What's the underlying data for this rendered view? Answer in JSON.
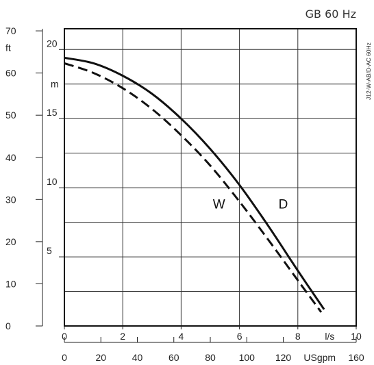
{
  "chart_data": {
    "type": "line",
    "header": "GB 60 Hz",
    "side_label": "J12-W-AB/D-AC 60Hz",
    "x_primary": {
      "unit": "l/s",
      "range": [
        0,
        10
      ],
      "ticks": [
        "0",
        "2",
        "4",
        "6",
        "8",
        "10"
      ],
      "unit_at": 9
    },
    "x_secondary": {
      "unit": "USgpm",
      "range": [
        0,
        160
      ],
      "ticks": [
        "0",
        "20",
        "40",
        "60",
        "80",
        "100",
        "120",
        "160"
      ],
      "unit_at": 140
    },
    "y_primary": {
      "unit": "m",
      "range": [
        0,
        21.5
      ],
      "ticks": [
        "5",
        "10",
        "15",
        "20"
      ],
      "unit_at": 17.5
    },
    "y_secondary": {
      "unit": "ft",
      "range": [
        0,
        70.5
      ],
      "ticks": [
        "0",
        "10",
        "20",
        "30",
        "40",
        "50",
        "60",
        "70"
      ],
      "unit_at": 66
    },
    "grid": true,
    "series": [
      {
        "name": "D",
        "style": "solid",
        "x": [
          0,
          1,
          2,
          3,
          4,
          5,
          6,
          7,
          8,
          8.9
        ],
        "y": [
          19.4,
          19.0,
          18.1,
          16.8,
          15.0,
          12.8,
          10.2,
          7.2,
          4.0,
          1.2
        ]
      },
      {
        "name": "W",
        "style": "dashed",
        "x": [
          0,
          1,
          2,
          3,
          4,
          5,
          6,
          7,
          8,
          8.8
        ],
        "y": [
          19.0,
          18.3,
          17.2,
          15.7,
          13.8,
          11.6,
          9.0,
          6.2,
          3.3,
          1.0
        ]
      }
    ],
    "series_label_positions": {
      "D": [
        7.5,
        8.5
      ],
      "W": [
        5.3,
        8.5
      ]
    }
  }
}
